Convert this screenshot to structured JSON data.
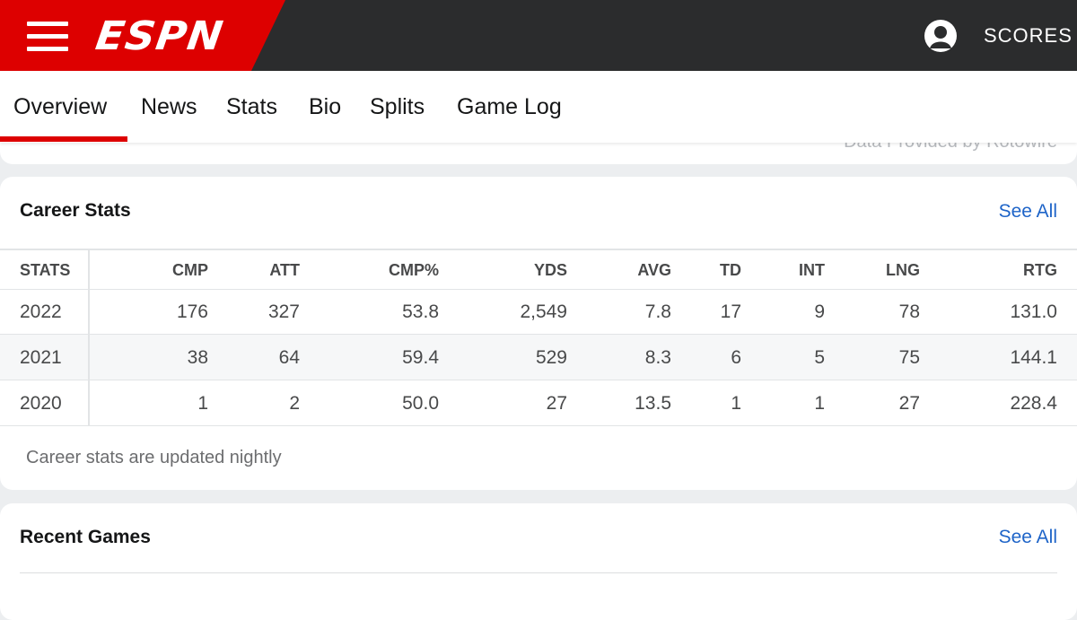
{
  "header": {
    "logo_text": "ESPN",
    "scores_label": "SCORES",
    "brand_color": "#d00",
    "bar_color": "#2b2c2d",
    "icons": [
      "menu-icon",
      "account-icon"
    ]
  },
  "tabs": [
    {
      "label": "Overview",
      "active": true
    },
    {
      "label": "News"
    },
    {
      "label": "Stats"
    },
    {
      "label": "Bio"
    },
    {
      "label": "Splits"
    },
    {
      "label": "Game Log"
    }
  ],
  "strip": {
    "text": "Data Provided by Rotowire"
  },
  "career_stats": {
    "title": "Career Stats",
    "see_all": "See All",
    "columns": [
      "STATS",
      "CMP",
      "ATT",
      "CMP%",
      "YDS",
      "AVG",
      "TD",
      "INT",
      "LNG",
      "RTG"
    ],
    "rows": [
      [
        "2022",
        "176",
        "327",
        "53.8",
        "2,549",
        "7.8",
        "17",
        "9",
        "78",
        "131.0"
      ],
      [
        "2021",
        "38",
        "64",
        "59.4",
        "529",
        "8.3",
        "6",
        "5",
        "75",
        "144.1"
      ],
      [
        "2020",
        "1",
        "2",
        "50.0",
        "27",
        "13.5",
        "1",
        "1",
        "27",
        "228.4"
      ]
    ],
    "note": "Career stats are updated nightly"
  },
  "recent_games": {
    "title": "Recent Games",
    "see_all": "See All"
  }
}
